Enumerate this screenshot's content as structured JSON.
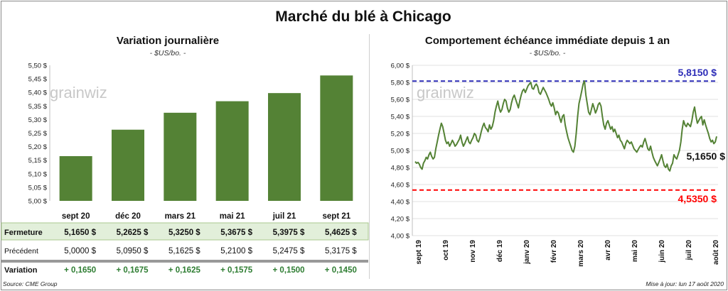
{
  "title": "Marché du blé à Chicago",
  "source": "Source: CME Group",
  "updated": "Mise à jour: lun 17 août 2020",
  "watermark": "grainwiz",
  "colors": {
    "bar": "#548235",
    "line": "#548235",
    "high": "#2e2eb8",
    "low": "#ff0000",
    "row_bg": "#e2efda",
    "positive": "#2e7d32"
  },
  "chart_data": [
    {
      "type": "bar",
      "title": "Variation journalière",
      "subtitle": "- $US/bo. -",
      "categories": [
        "sept 20",
        "déc 20",
        "mars 21",
        "mai 21",
        "juil 21",
        "sept 21"
      ],
      "values": [
        5.165,
        5.2625,
        5.325,
        5.3675,
        5.3975,
        5.4625
      ],
      "ylim": [
        5.0,
        5.5
      ],
      "yticks": [
        "5,00 $",
        "5,05 $",
        "5,10 $",
        "5,15 $",
        "5,20 $",
        "5,25 $",
        "5,30 $",
        "5,35 $",
        "5,40 $",
        "5,45 $",
        "5,50 $"
      ],
      "grid": false,
      "table": {
        "rows": [
          {
            "label": "Fermeture",
            "values": [
              "5,1650  $",
              "5,2625  $",
              "5,3250  $",
              "5,3675  $",
              "5,3975  $",
              "5,4625  $"
            ]
          },
          {
            "label": "Précédent",
            "values": [
              "5,0000  $",
              "5,0950  $",
              "5,1625  $",
              "5,2100  $",
              "5,2475  $",
              "5,3175  $"
            ]
          },
          {
            "label": "Variation",
            "values": [
              "+ 0,1650",
              "+ 0,1675",
              "+ 0,1625",
              "+ 0,1575",
              "+ 0,1500",
              "+ 0,1450"
            ]
          }
        ]
      }
    },
    {
      "type": "line",
      "title": "Comportement  échéance immédiate depuis 1 an",
      "subtitle": "- $US/bo. -",
      "ylim": [
        4.0,
        6.0
      ],
      "yticks": [
        "4,00 $",
        "4,20 $",
        "4,40 $",
        "4,60 $",
        "4,80 $",
        "5,00 $",
        "5,20 $",
        "5,40 $",
        "5,60 $",
        "5,80 $",
        "6,00 $"
      ],
      "xticks": [
        "sept 19",
        "oct 19",
        "nov 19",
        "déc 19",
        "janv 20",
        "févr 20",
        "mars 20",
        "avr 20",
        "mai 20",
        "juin 20",
        "juil 20",
        "août 20"
      ],
      "grid": true,
      "high": {
        "value": 5.815,
        "label": "5,8150 $"
      },
      "low": {
        "value": 4.535,
        "label": "4,5350 $"
      },
      "last": {
        "value": 5.165,
        "label": "5,1650 $"
      },
      "series": [
        {
          "values": [
            4.87,
            4.85,
            4.86,
            4.84,
            4.8,
            4.78,
            4.85,
            4.88,
            4.92,
            4.9,
            4.95,
            4.98,
            4.93,
            4.9,
            4.92,
            5.02,
            5.1,
            5.18,
            5.25,
            5.32,
            5.28,
            5.2,
            5.12,
            5.08,
            5.1,
            5.05,
            5.08,
            5.12,
            5.09,
            5.05,
            5.07,
            5.1,
            5.13,
            5.18,
            5.1,
            5.05,
            5.08,
            5.12,
            5.16,
            5.1,
            5.08,
            5.12,
            5.15,
            5.2,
            5.18,
            5.12,
            5.1,
            5.15,
            5.22,
            5.28,
            5.32,
            5.27,
            5.25,
            5.22,
            5.3,
            5.25,
            5.28,
            5.35,
            5.45,
            5.52,
            5.58,
            5.5,
            5.45,
            5.48,
            5.55,
            5.6,
            5.58,
            5.5,
            5.45,
            5.48,
            5.56,
            5.62,
            5.65,
            5.6,
            5.55,
            5.5,
            5.58,
            5.65,
            5.7,
            5.72,
            5.68,
            5.72,
            5.76,
            5.78,
            5.8,
            5.73,
            5.72,
            5.76,
            5.78,
            5.75,
            5.68,
            5.66,
            5.7,
            5.74,
            5.71,
            5.68,
            5.64,
            5.6,
            5.55,
            5.52,
            5.56,
            5.5,
            5.42,
            5.46,
            5.44,
            5.38,
            5.33,
            5.4,
            5.42,
            5.3,
            5.22,
            5.15,
            5.1,
            5.05,
            5.0,
            4.98,
            5.05,
            5.2,
            5.4,
            5.55,
            5.62,
            5.7,
            5.78,
            5.815,
            5.65,
            5.55,
            5.45,
            5.42,
            5.48,
            5.55,
            5.5,
            5.44,
            5.48,
            5.54,
            5.56,
            5.52,
            5.4,
            5.3,
            5.25,
            5.32,
            5.35,
            5.3,
            5.25,
            5.28,
            5.22,
            5.25,
            5.2,
            5.15,
            5.18,
            5.12,
            5.1,
            5.06,
            5.02,
            5.08,
            5.12,
            5.1,
            5.08,
            5.1,
            5.06,
            5.02,
            5.0,
            4.98,
            5.01,
            5.04,
            5.06,
            5.04,
            5.1,
            5.14,
            5.08,
            5.02,
            5.0,
            5.05,
            4.98,
            4.92,
            4.88,
            4.85,
            4.82,
            4.86,
            4.9,
            4.95,
            4.88,
            4.82,
            4.8,
            4.84,
            4.78,
            4.76,
            4.82,
            4.85,
            4.95,
            4.92,
            4.9,
            4.95,
            5.0,
            5.1,
            5.25,
            5.35,
            5.3,
            5.28,
            5.32,
            5.3,
            5.28,
            5.35,
            5.45,
            5.51,
            5.4,
            5.32,
            5.35,
            5.38,
            5.4,
            5.3,
            5.36,
            5.3,
            5.25,
            5.2,
            5.14,
            5.1,
            5.12,
            5.08,
            5.1,
            5.165
          ]
        }
      ]
    }
  ]
}
